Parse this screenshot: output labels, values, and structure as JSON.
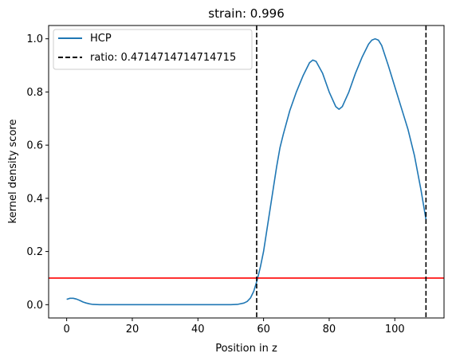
{
  "chart_data": {
    "type": "line",
    "title": "strain: 0.996",
    "xlabel": "Position in z",
    "ylabel": "kernel density score",
    "xlim": [
      -5.5,
      115.0
    ],
    "ylim": [
      -0.05,
      1.05
    ],
    "xticks": [
      0,
      20,
      40,
      60,
      80,
      100
    ],
    "yticks": [
      0.0,
      0.2,
      0.4,
      0.6,
      0.8,
      1.0
    ],
    "xtick_labels": [
      "0",
      "20",
      "40",
      "60",
      "80",
      "100"
    ],
    "ytick_labels": [
      "0.0",
      "0.2",
      "0.4",
      "0.6",
      "0.8",
      "1.0"
    ],
    "grid": false,
    "legend_position": "upper-left",
    "series": [
      {
        "name": "HCP",
        "color": "#1f77b4",
        "x": [
          0,
          1,
          2,
          3,
          4,
          5,
          6,
          7,
          8,
          10,
          15,
          20,
          30,
          40,
          50,
          52,
          54,
          55,
          56,
          57,
          58,
          59,
          60,
          61,
          62,
          63,
          64,
          65,
          66,
          68,
          70,
          72,
          74,
          75,
          76,
          78,
          80,
          82,
          83,
          84,
          86,
          88,
          90,
          92,
          93,
          94,
          95,
          96,
          98,
          100,
          102,
          104,
          106,
          108,
          109.5
        ],
        "y": [
          0.02,
          0.024,
          0.024,
          0.021,
          0.016,
          0.01,
          0.006,
          0.003,
          0.001,
          0.0,
          0.0,
          0.0,
          0.0,
          0.0,
          0.0,
          0.001,
          0.006,
          0.012,
          0.025,
          0.05,
          0.09,
          0.14,
          0.2,
          0.28,
          0.36,
          0.44,
          0.52,
          0.59,
          0.64,
          0.73,
          0.8,
          0.86,
          0.91,
          0.92,
          0.915,
          0.87,
          0.8,
          0.745,
          0.735,
          0.745,
          0.8,
          0.87,
          0.93,
          0.98,
          0.995,
          1.0,
          0.995,
          0.975,
          0.9,
          0.82,
          0.74,
          0.66,
          0.56,
          0.43,
          0.32
        ]
      }
    ],
    "vlines": [
      {
        "x": 57.9,
        "color": "#000000",
        "style": "dashed",
        "label": "ratio: 0.4714714714714715"
      },
      {
        "x": 109.5,
        "color": "#000000",
        "style": "dashed"
      }
    ],
    "hlines": [
      {
        "y": 0.1,
        "color": "#ff0000",
        "style": "solid"
      }
    ],
    "legend": [
      {
        "label": "HCP",
        "style": "solid",
        "color": "#1f77b4"
      },
      {
        "label": "ratio: 0.4714714714714715",
        "style": "dashed",
        "color": "#000000"
      }
    ]
  }
}
